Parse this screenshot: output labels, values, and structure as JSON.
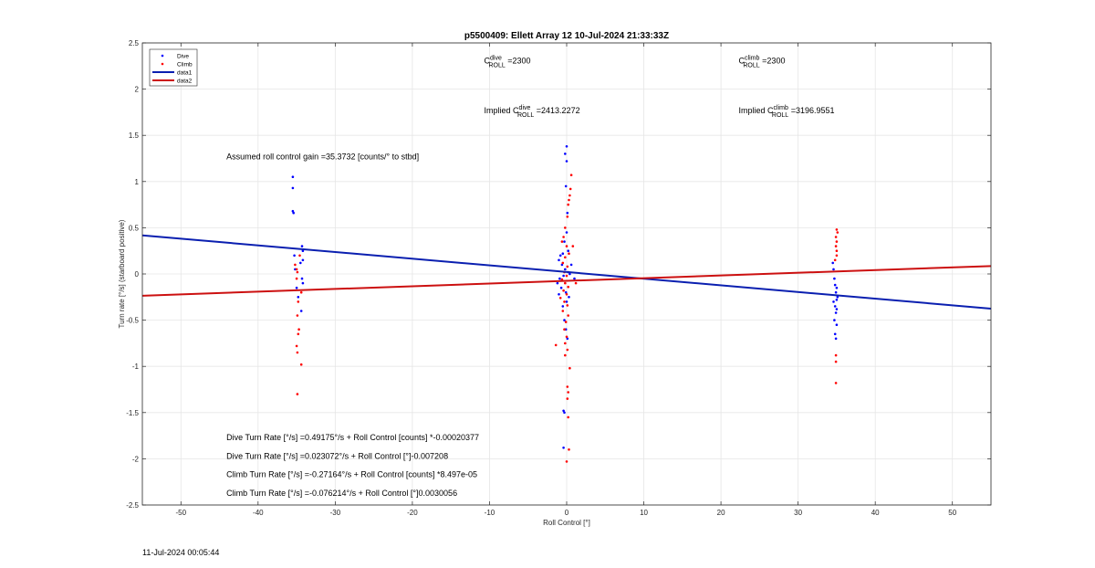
{
  "chart_data": {
    "type": "scatter",
    "title": "p5500409: Ellett Array 12 10-Jul-2024 21:33:33Z",
    "xlabel": "Roll Control [°]",
    "ylabel": "Turn rate [°/s] (starboard positive)",
    "xlim": [
      -55,
      55
    ],
    "ylim": [
      -2.5,
      2.5
    ],
    "xticks": [
      -50,
      -40,
      -30,
      -20,
      -10,
      0,
      10,
      20,
      30,
      40,
      50
    ],
    "yticks": [
      -2.5,
      -2,
      -1.5,
      -1,
      -0.5,
      0,
      0.5,
      1,
      1.5,
      2,
      2.5
    ],
    "xtick_labels": [
      "-50",
      "-40",
      "-30",
      "-20",
      "-10",
      "0",
      "10",
      "20",
      "30",
      "40",
      "50"
    ],
    "ytick_labels": [
      "-2.5",
      "-2",
      "-1.5",
      "-1",
      "-0.5",
      "0",
      "0.5",
      "1",
      "1.5",
      "2",
      "2.5"
    ],
    "grid": true,
    "legend_position": "top-left",
    "legend": [
      {
        "name": "Dive",
        "kind": "dot",
        "color": "#0000ff"
      },
      {
        "name": "Climb",
        "kind": "dot",
        "color": "#ff0000"
      },
      {
        "name": "data1",
        "kind": "line",
        "color": "#0a1fb0"
      },
      {
        "name": "data2",
        "kind": "line",
        "color": "#cc1010"
      }
    ],
    "series": [
      {
        "name": "Dive",
        "kind": "scatter",
        "color": "#0000ff",
        "points": [
          [
            -35.5,
            1.05
          ],
          [
            -35.5,
            0.93
          ],
          [
            -35.5,
            0.68
          ],
          [
            -35.4,
            0.66
          ],
          [
            -35.3,
            0.2
          ],
          [
            -35.2,
            0.05
          ],
          [
            -35.0,
            -0.15
          ],
          [
            -34.8,
            -0.25
          ],
          [
            -34.5,
            0.12
          ],
          [
            -34.3,
            0.3
          ],
          [
            -34.2,
            0.25
          ],
          [
            -34.2,
            0.15
          ],
          [
            -34.3,
            -0.05
          ],
          [
            -34.2,
            -0.1
          ],
          [
            -34.4,
            -0.4
          ],
          [
            0.0,
            1.38
          ],
          [
            -0.2,
            1.3
          ],
          [
            0.0,
            1.22
          ],
          [
            -0.1,
            0.95
          ],
          [
            0.1,
            0.66
          ],
          [
            0.0,
            0.45
          ],
          [
            -0.3,
            0.35
          ],
          [
            -0.5,
            0.22
          ],
          [
            -0.8,
            0.2
          ],
          [
            -1.0,
            0.15
          ],
          [
            -0.6,
            0.1
          ],
          [
            -0.2,
            0.05
          ],
          [
            0.2,
            0.02
          ],
          [
            0.4,
            0.0
          ],
          [
            -0.4,
            -0.02
          ],
          [
            -0.9,
            -0.05
          ],
          [
            -1.2,
            -0.1
          ],
          [
            -0.7,
            -0.15
          ],
          [
            -0.1,
            -0.2
          ],
          [
            0.3,
            -0.25
          ],
          [
            0.0,
            -0.3
          ],
          [
            -0.5,
            -0.35
          ],
          [
            -1.0,
            -0.22
          ],
          [
            0.6,
            0.1
          ],
          [
            1.0,
            -0.05
          ],
          [
            0.2,
            0.25
          ],
          [
            -0.3,
            -0.5
          ],
          [
            -0.1,
            -0.6
          ],
          [
            0.1,
            -0.7
          ],
          [
            -0.4,
            -1.48
          ],
          [
            -0.3,
            -1.5
          ],
          [
            -0.4,
            -1.88
          ],
          [
            34.5,
            0.12
          ],
          [
            34.6,
            0.05
          ],
          [
            34.7,
            -0.05
          ],
          [
            34.8,
            -0.12
          ],
          [
            34.9,
            -0.2
          ],
          [
            35.0,
            -0.28
          ],
          [
            34.8,
            -0.35
          ],
          [
            34.9,
            -0.42
          ],
          [
            34.7,
            -0.5
          ],
          [
            35.0,
            -0.55
          ],
          [
            34.8,
            -0.65
          ],
          [
            34.9,
            -0.7
          ],
          [
            35.0,
            -0.15
          ],
          [
            35.1,
            -0.25
          ],
          [
            34.6,
            -0.3
          ],
          [
            35.0,
            -0.38
          ]
        ]
      },
      {
        "name": "Climb",
        "kind": "scatter",
        "color": "#ff0000",
        "points": [
          [
            -35.2,
            0.1
          ],
          [
            -35.0,
            0.05
          ],
          [
            -34.9,
            0.02
          ],
          [
            -35.0,
            -0.05
          ],
          [
            -34.8,
            -0.3
          ],
          [
            -34.9,
            -0.45
          ],
          [
            -34.7,
            -0.6
          ],
          [
            -34.8,
            -0.65
          ],
          [
            -35.0,
            -0.78
          ],
          [
            -34.9,
            -0.85
          ],
          [
            -34.4,
            -0.98
          ],
          [
            -34.9,
            -1.3
          ],
          [
            -34.6,
            0.2
          ],
          [
            -34.4,
            -0.2
          ],
          [
            0.5,
            0.92
          ],
          [
            0.4,
            0.85
          ],
          [
            0.6,
            1.07
          ],
          [
            0.3,
            0.8
          ],
          [
            0.2,
            0.75
          ],
          [
            0.1,
            0.62
          ],
          [
            -0.2,
            0.5
          ],
          [
            -0.4,
            0.4
          ],
          [
            -0.6,
            0.35
          ],
          [
            0.0,
            0.3
          ],
          [
            0.3,
            0.22
          ],
          [
            -0.2,
            0.18
          ],
          [
            -0.5,
            0.12
          ],
          [
            0.1,
            0.08
          ],
          [
            -0.3,
            0.02
          ],
          [
            0.0,
            -0.02
          ],
          [
            -0.6,
            -0.06
          ],
          [
            -0.2,
            -0.1
          ],
          [
            0.2,
            -0.14
          ],
          [
            -0.4,
            -0.18
          ],
          [
            0.0,
            -0.22
          ],
          [
            -0.8,
            -0.26
          ],
          [
            -0.3,
            -0.3
          ],
          [
            0.1,
            -0.34
          ],
          [
            -0.5,
            -0.4
          ],
          [
            0.2,
            -0.45
          ],
          [
            -0.1,
            -0.52
          ],
          [
            -0.3,
            -0.6
          ],
          [
            0.0,
            -0.68
          ],
          [
            -0.2,
            -0.75
          ],
          [
            0.1,
            -0.82
          ],
          [
            -0.2,
            -0.88
          ],
          [
            0.4,
            -1.02
          ],
          [
            0.1,
            -1.22
          ],
          [
            0.2,
            -1.28
          ],
          [
            0.1,
            -1.35
          ],
          [
            0.2,
            -1.55
          ],
          [
            0.3,
            -1.9
          ],
          [
            0.0,
            -2.03
          ],
          [
            -1.4,
            -0.77
          ],
          [
            1.2,
            -0.1
          ],
          [
            0.8,
            0.3
          ],
          [
            35.0,
            0.48
          ],
          [
            35.1,
            0.45
          ],
          [
            34.9,
            0.4
          ],
          [
            35.0,
            0.35
          ],
          [
            34.9,
            0.3
          ],
          [
            35.0,
            0.25
          ],
          [
            35.0,
            0.2
          ],
          [
            34.8,
            0.15
          ],
          [
            34.9,
            -0.88
          ],
          [
            34.9,
            -0.95
          ],
          [
            34.9,
            -1.18
          ]
        ]
      },
      {
        "name": "data1",
        "kind": "line",
        "color": "#0a1fb0",
        "x": [
          -55,
          55
        ],
        "y": [
          0.4176,
          -0.3754
        ]
      },
      {
        "name": "data2",
        "kind": "line",
        "color": "#cc1010",
        "x": [
          -55,
          55
        ],
        "y": [
          -0.2355,
          0.0857
        ]
      }
    ],
    "annotations": [
      {
        "id": "c-dive",
        "x": -10.7,
        "y": 2.28,
        "base": "C",
        "sup": "dive",
        "sub": "ROLL",
        "rest": " =2300"
      },
      {
        "id": "c-climb",
        "x": 22.3,
        "y": 2.28,
        "base": "C",
        "sup": "climb",
        "sub": "ROLL",
        "rest": " =2300"
      },
      {
        "id": "implied-dive",
        "x": -10.7,
        "y": 1.74,
        "base": "Implied C",
        "sup": "dive",
        "sub": "ROLL",
        "rest": " =2413.2272"
      },
      {
        "id": "implied-climb",
        "x": 22.3,
        "y": 1.74,
        "base": "Implied C",
        "sup": "climb",
        "sub": "ROLL",
        "rest": " =3196.9551"
      },
      {
        "id": "gain",
        "x": -44.1,
        "y": 1.24,
        "text": "Assumed roll control gain =35.3732 [counts/° to stbd]"
      },
      {
        "id": "eq1",
        "x": -44.1,
        "y": -1.8,
        "text": "Dive Turn Rate [°/s] =0.49175°/s + Roll Control [counts] *-0.00020377"
      },
      {
        "id": "eq2",
        "x": -44.1,
        "y": -2.0,
        "text": "Dive Turn Rate [°/s] =0.023072°/s + Roll Control [°]-0.007208"
      },
      {
        "id": "eq3",
        "x": -44.1,
        "y": -2.2,
        "text": "Climb Turn Rate [°/s] =-0.27164°/s + Roll Control [counts] *8.497e-05"
      },
      {
        "id": "eq4",
        "x": -44.1,
        "y": -2.4,
        "text": "Climb Turn Rate [°/s] =-0.076214°/s + Roll Control [°]0.0030056"
      }
    ]
  },
  "footer": {
    "timestamp": "11-Jul-2024 00:05:44"
  }
}
